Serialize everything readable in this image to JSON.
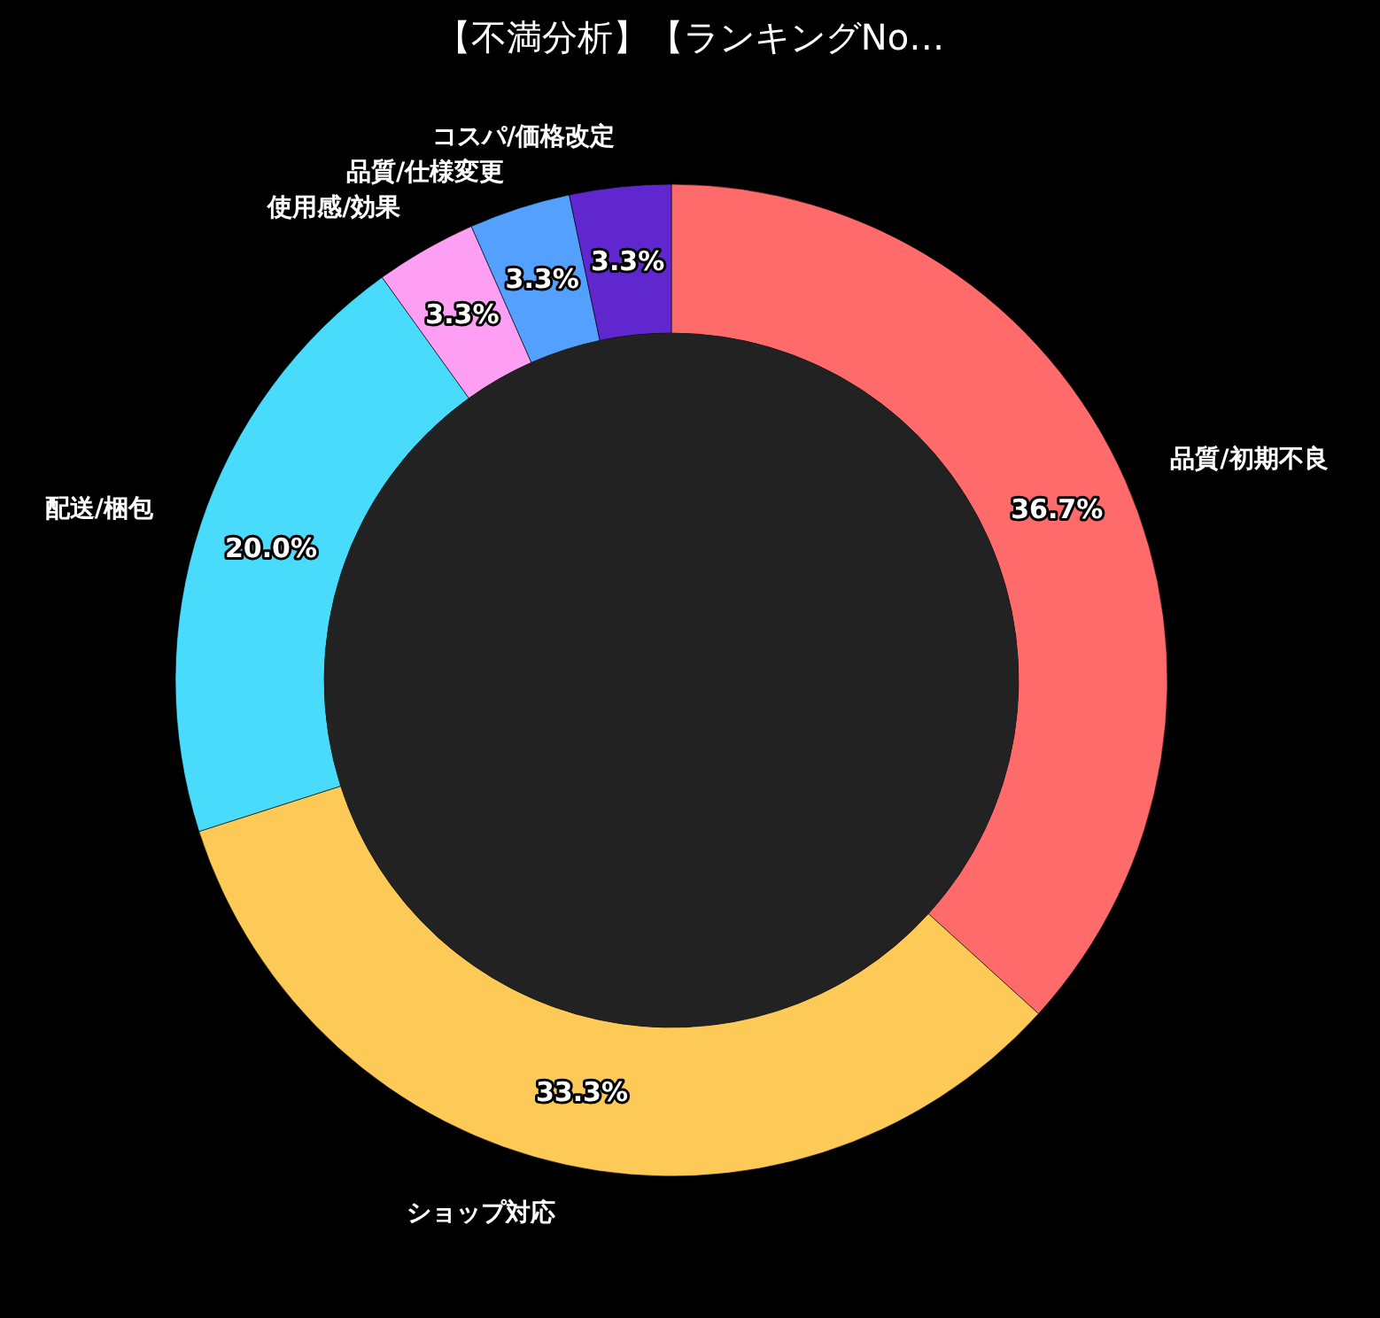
{
  "chart_data": {
    "type": "donut",
    "title": "【不満分析】【ランキングNo…",
    "categories": [
      "品質/初期不良",
      "ショップ対応",
      "配送/梱包",
      "使用感/効果",
      "品質/仕様変更",
      "コスパ/価格改定"
    ],
    "values": [
      36.7,
      33.3,
      20.0,
      3.3,
      3.3,
      3.3
    ],
    "colors": [
      "#ff6b6b",
      "#feca57",
      "#48dbfb",
      "#ff9ff3",
      "#54a0ff",
      "#5f27cd"
    ],
    "value_labels": [
      "36.7%",
      "33.3%",
      "20.0%",
      "3.3%",
      "3.3%",
      "3.3%"
    ]
  }
}
